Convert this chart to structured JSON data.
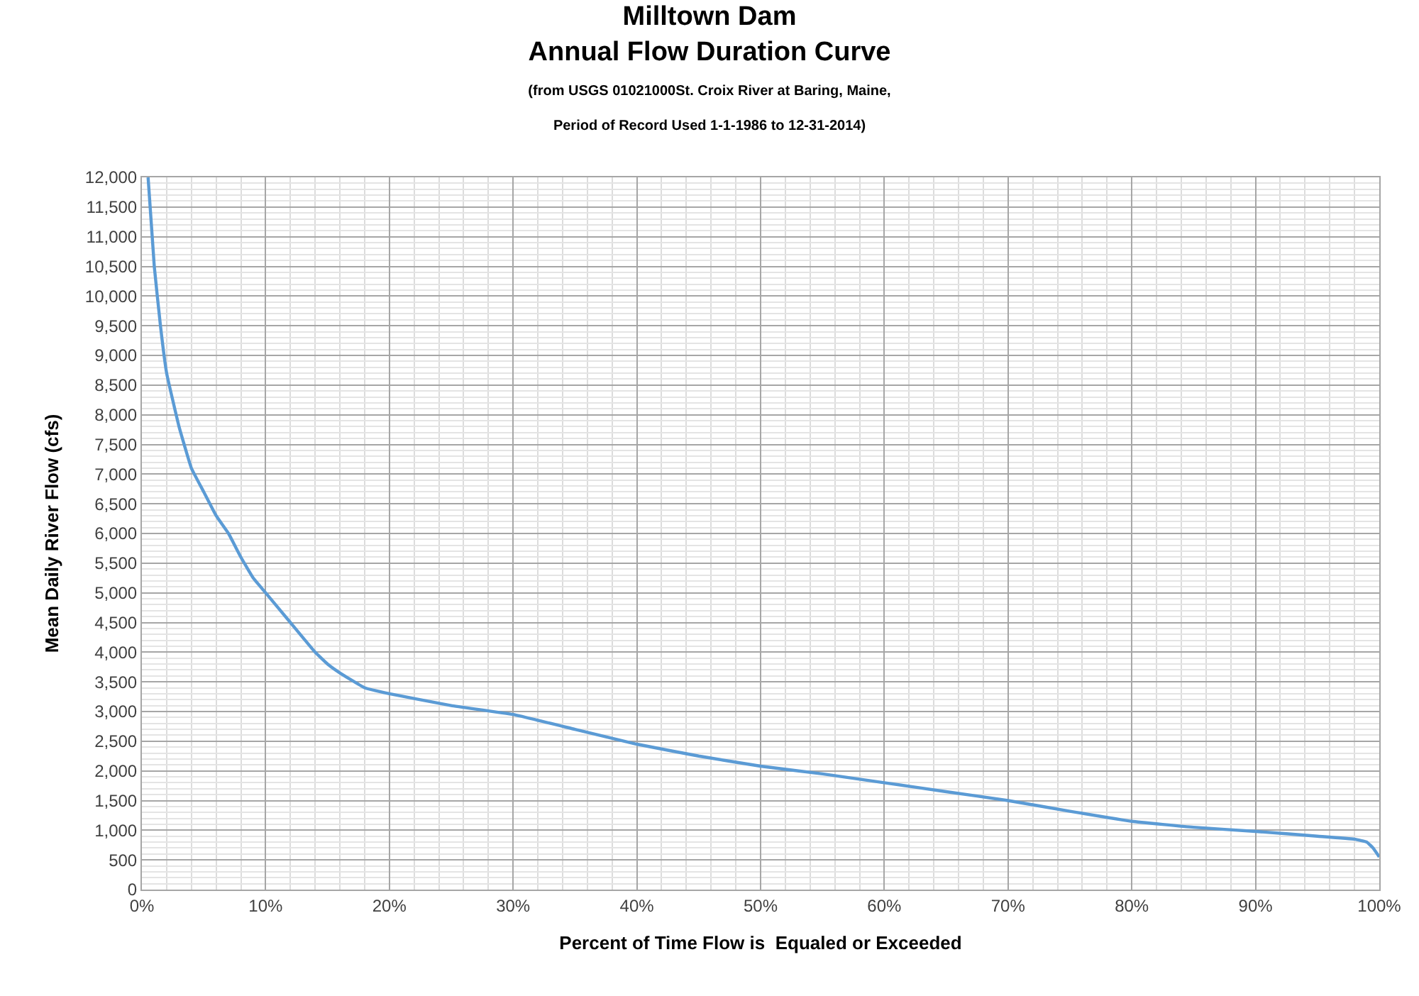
{
  "chart_data": {
    "type": "line",
    "title": "Milltown Dam\nAnnual Flow Duration Curve",
    "subtitle": "(from USGS 01021000St. Croix River at Baring, Maine,\nPeriod of Record Used 1-1-1986 to 12-31-2014)",
    "xlabel": "Percent of Time Flow is  Equaled or Exceeded",
    "ylabel": "Mean Daily River Flow (cfs)",
    "x": [
      0.5,
      1,
      1.5,
      2,
      3,
      4,
      5,
      6,
      7,
      8,
      9,
      10,
      12,
      14,
      15,
      16,
      18,
      20,
      25,
      30,
      35,
      40,
      45,
      50,
      55,
      60,
      65,
      70,
      75,
      80,
      85,
      90,
      95,
      98,
      99,
      99.5,
      100
    ],
    "series": [
      {
        "color": "#5b9bd5",
        "values": [
          12000,
          10500,
          9500,
          8700,
          7800,
          7100,
          6700,
          6300,
          6000,
          5600,
          5250,
          5000,
          4500,
          4000,
          3800,
          3650,
          3400,
          3300,
          3100,
          2950,
          2700,
          2450,
          2250,
          2080,
          1950,
          1800,
          1650,
          1500,
          1320,
          1150,
          1050,
          980,
          900,
          850,
          800,
          700,
          550
        ]
      }
    ],
    "xlim": [
      0,
      100
    ],
    "ylim": [
      0,
      12000
    ],
    "xticks": [
      {
        "value": 0,
        "label": "0%"
      },
      {
        "value": 10,
        "label": "10%"
      },
      {
        "value": 20,
        "label": "20%"
      },
      {
        "value": 30,
        "label": "30%"
      },
      {
        "value": 40,
        "label": "40%"
      },
      {
        "value": 50,
        "label": "50%"
      },
      {
        "value": 60,
        "label": "60%"
      },
      {
        "value": 70,
        "label": "70%"
      },
      {
        "value": 80,
        "label": "80%"
      },
      {
        "value": 90,
        "label": "90%"
      },
      {
        "value": 100,
        "label": "100%"
      }
    ],
    "yticks": [
      0,
      500,
      {
        "value": 1000,
        "label": "1,000"
      },
      {
        "value": 1500,
        "label": "1,500"
      },
      {
        "value": 2000,
        "label": "2,000"
      },
      {
        "value": 2500,
        "label": "2,500"
      },
      {
        "value": 3000,
        "label": "3,000"
      },
      {
        "value": 3500,
        "label": "3,500"
      },
      {
        "value": 4000,
        "label": "4,000"
      },
      {
        "value": 4500,
        "label": "4,500"
      },
      {
        "value": 5000,
        "label": "5,000"
      },
      {
        "value": 5500,
        "label": "5,500"
      },
      {
        "value": 6000,
        "label": "6,000"
      },
      {
        "value": 6500,
        "label": "6,500"
      },
      {
        "value": 7000,
        "label": "7,000"
      },
      {
        "value": 7500,
        "label": "7,500"
      },
      {
        "value": 8000,
        "label": "8,000"
      },
      {
        "value": 8500,
        "label": "8,500"
      },
      {
        "value": 9000,
        "label": "9,000"
      },
      {
        "value": 9500,
        "label": "9,500"
      },
      {
        "value": 10000,
        "label": "10,000"
      },
      {
        "value": 10500,
        "label": "10,500"
      },
      {
        "value": 11000,
        "label": "11,000"
      },
      {
        "value": 11500,
        "label": "11,500"
      },
      {
        "value": 12000,
        "label": "12,000"
      }
    ],
    "grid": true,
    "marker": "none",
    "line_style": "solid"
  }
}
